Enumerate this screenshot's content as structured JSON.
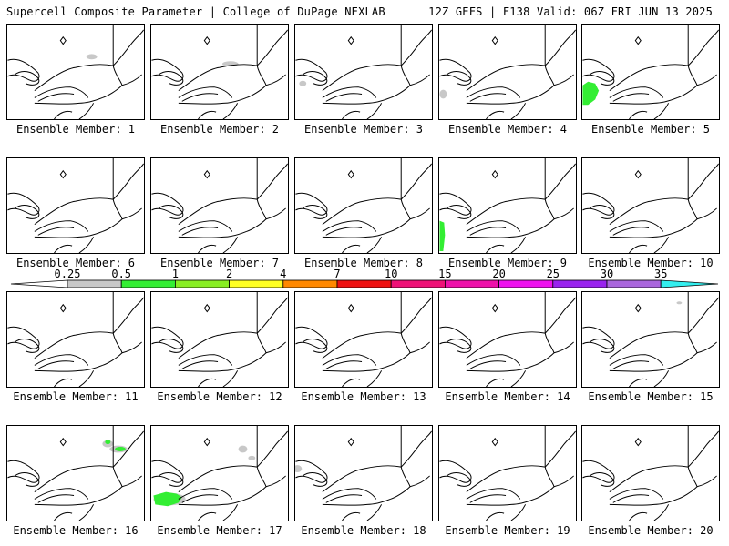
{
  "header": {
    "left_title": "Supercell Composite Parameter | College of DuPage NEXLAB",
    "right_title": "12Z GEFS | F138 Valid: 06Z FRI JUN 13 2025"
  },
  "colorbar": {
    "labels": [
      "0.25",
      "0.5",
      "1",
      "2",
      "4",
      "7",
      "10",
      "15",
      "20",
      "25",
      "30",
      "35"
    ],
    "colors": [
      "#c8c8c8",
      "#33ee33",
      "#88ee22",
      "#ffff22",
      "#ff8800",
      "#ee1111",
      "#ee1177",
      "#ee11aa",
      "#ee11ee",
      "#9922ee",
      "#aa66dd",
      "#33eeee"
    ]
  },
  "panels": [
    {
      "label": "Ensemble Member: 1",
      "features": [
        "gray-ontario"
      ]
    },
    {
      "label": "Ensemble Member: 2",
      "features": [
        "gray-ontario-lake"
      ]
    },
    {
      "label": "Ensemble Member: 3",
      "features": [
        "gray-sw"
      ]
    },
    {
      "label": "Ensemble Member: 4",
      "features": [
        "gray-sw-small"
      ]
    },
    {
      "label": "Ensemble Member: 5",
      "features": [
        "green-sw"
      ]
    },
    {
      "label": "Ensemble Member: 6",
      "features": []
    },
    {
      "label": "Ensemble Member: 7",
      "features": []
    },
    {
      "label": "Ensemble Member: 8",
      "features": []
    },
    {
      "label": "Ensemble Member: 9",
      "features": [
        "green-w-edge"
      ]
    },
    {
      "label": "Ensemble Member: 10",
      "features": []
    },
    {
      "label": "Ensemble Member: 11",
      "features": []
    },
    {
      "label": "Ensemble Member: 12",
      "features": []
    },
    {
      "label": "Ensemble Member: 13",
      "features": []
    },
    {
      "label": "Ensemble Member: 14",
      "features": []
    },
    {
      "label": "Ensemble Member: 15",
      "features": [
        "gray-ne-speck"
      ]
    },
    {
      "label": "Ensemble Member: 16",
      "features": [
        "green-north"
      ]
    },
    {
      "label": "Ensemble Member: 17",
      "features": [
        "green-south",
        "gray-north"
      ]
    },
    {
      "label": "Ensemble Member: 18",
      "features": [
        "gray-w-edge"
      ]
    },
    {
      "label": "Ensemble Member: 19",
      "features": []
    },
    {
      "label": "Ensemble Member: 20",
      "features": []
    }
  ]
}
